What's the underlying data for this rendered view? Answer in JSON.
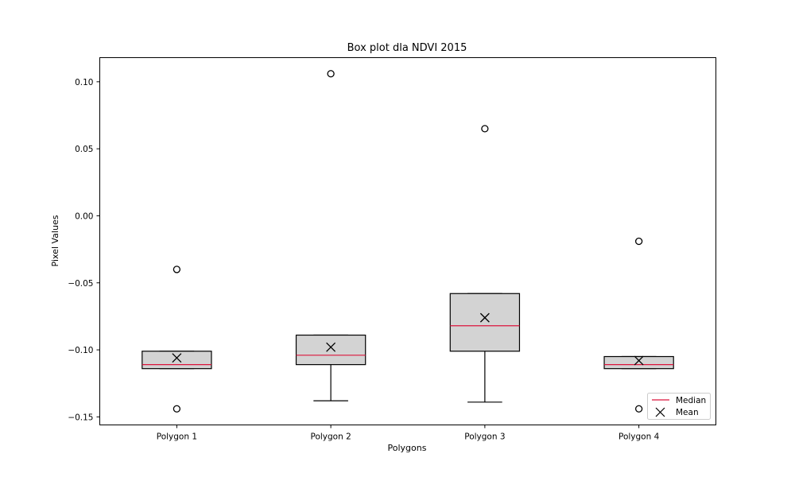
{
  "chart_data": {
    "type": "box",
    "title": "Box plot dla NDVI 2015",
    "xlabel": "Polygons",
    "ylabel": "Pixel Values",
    "ylim": [
      -0.156,
      0.118
    ],
    "yticks": [
      0.1,
      0.05,
      0.0,
      -0.05,
      -0.1,
      -0.15
    ],
    "ytick_labels": [
      "0.10",
      "0.05",
      "0.00",
      "−0.05",
      "−0.10",
      "−0.15"
    ],
    "grid": false,
    "legend_position": "bottom-right",
    "legend": [
      {
        "label": "Median",
        "marker": "line",
        "color": "#dc143c"
      },
      {
        "label": "Mean",
        "marker": "x",
        "color": "#000000"
      }
    ],
    "box_color": "#d3d3d3",
    "median_color": "#dc143c",
    "categories": [
      "Polygon 1",
      "Polygon 2",
      "Polygon 3",
      "Polygon 4"
    ],
    "boxes": [
      {
        "category": "Polygon 1",
        "whisker_low": -0.114,
        "q1": -0.114,
        "median": -0.111,
        "q3": -0.101,
        "whisker_high": -0.101,
        "mean": -0.106,
        "outliers": [
          -0.04,
          -0.144
        ]
      },
      {
        "category": "Polygon 2",
        "whisker_low": -0.138,
        "q1": -0.111,
        "median": -0.104,
        "q3": -0.089,
        "whisker_high": -0.089,
        "mean": -0.098,
        "outliers": [
          0.106
        ]
      },
      {
        "category": "Polygon 3",
        "whisker_low": -0.139,
        "q1": -0.101,
        "median": -0.082,
        "q3": -0.058,
        "whisker_high": -0.058,
        "mean": -0.076,
        "outliers": [
          0.065
        ]
      },
      {
        "category": "Polygon 4",
        "whisker_low": -0.114,
        "q1": -0.114,
        "median": -0.111,
        "q3": -0.105,
        "whisker_high": -0.105,
        "mean": -0.108,
        "outliers": [
          -0.019,
          -0.144
        ]
      }
    ]
  }
}
